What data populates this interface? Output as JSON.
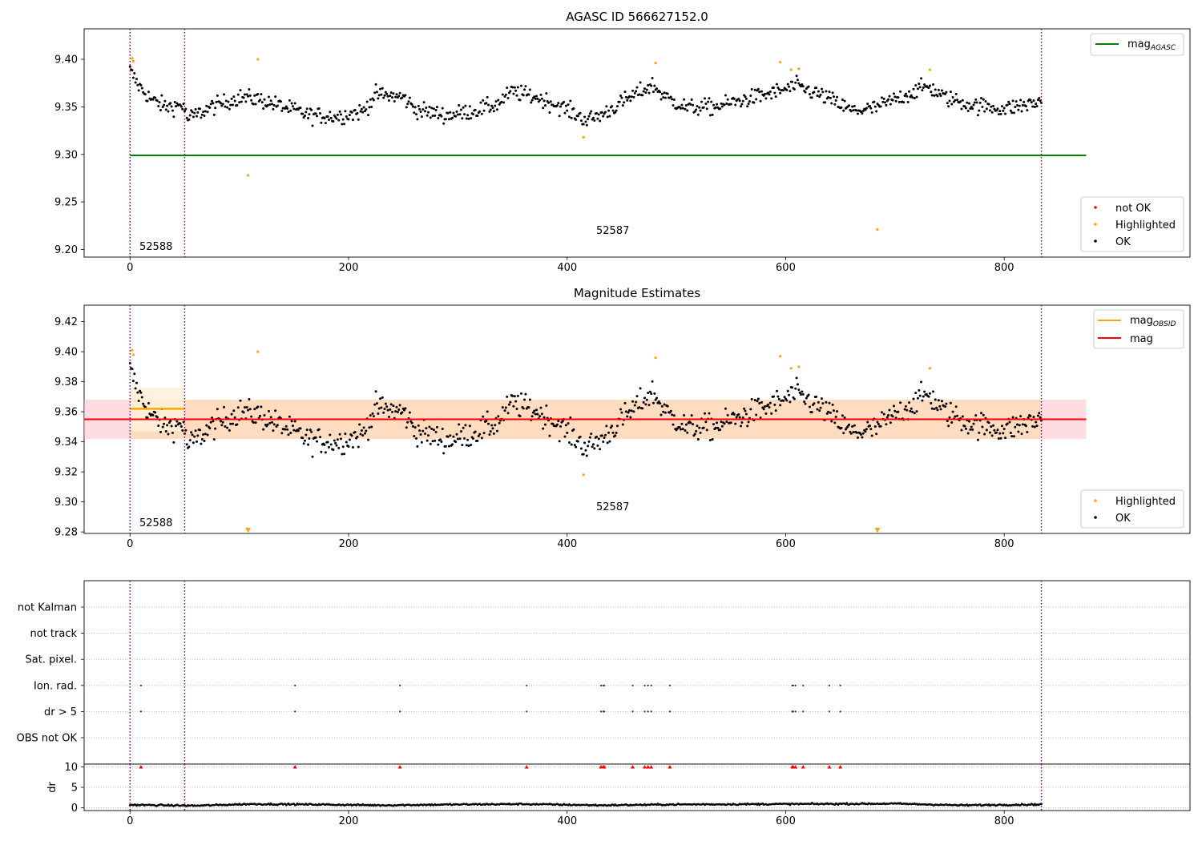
{
  "colors": {
    "ok": "#000000",
    "highlighted": "#ffa500",
    "not_ok": "#ff0000",
    "mag_agasc": "#008000",
    "mag_obsid": "#ffa500",
    "mag": "#ff0000",
    "obsid_boundary": "#800080",
    "mag_band_global": "#ffc0cb",
    "mag_band_obsid": "#ffdab0"
  },
  "chart_data": [
    {
      "type": "scatter",
      "title": "AGASC ID 566627152.0",
      "xlim": [
        -42,
        970
      ],
      "ylim": [
        9.192,
        9.432
      ],
      "xticks": [
        "0",
        "200",
        "400",
        "600",
        "800"
      ],
      "yticks": [
        "9.20",
        "9.25",
        "9.30",
        "9.35",
        "9.40"
      ],
      "legend_top": {
        "placement": "upper right",
        "entries": [
          "mag",
          "AGASC"
        ]
      },
      "legend_bottom": {
        "placement": "lower right",
        "entries": [
          "not OK",
          "Highlighted",
          "OK"
        ]
      },
      "obsid_boundaries": [
        0,
        50,
        834
      ],
      "obsid_labels": [
        {
          "text": "52588",
          "x": 9,
          "y": 9.203
        },
        {
          "text": "52587",
          "x": 425,
          "y": 9.219
        }
      ],
      "mag_agasc": {
        "value": 9.299,
        "x_range": [
          0,
          875
        ]
      },
      "ok_series": {
        "x_range": [
          0,
          834
        ],
        "anchors": [
          [
            0,
            9.388
          ],
          [
            8,
            9.372
          ],
          [
            20,
            9.357
          ],
          [
            33,
            9.35
          ],
          [
            49,
            9.352
          ],
          [
            52,
            9.337
          ],
          [
            75,
            9.35
          ],
          [
            100,
            9.36
          ],
          [
            118,
            9.358
          ],
          [
            140,
            9.35
          ],
          [
            165,
            9.341
          ],
          [
            190,
            9.34
          ],
          [
            213,
            9.345
          ],
          [
            225,
            9.363
          ],
          [
            250,
            9.36
          ],
          [
            262,
            9.347
          ],
          [
            290,
            9.341
          ],
          [
            315,
            9.346
          ],
          [
            335,
            9.352
          ],
          [
            350,
            9.366
          ],
          [
            372,
            9.36
          ],
          [
            395,
            9.35
          ],
          [
            418,
            9.336
          ],
          [
            432,
            9.342
          ],
          [
            455,
            9.358
          ],
          [
            478,
            9.373
          ],
          [
            490,
            9.36
          ],
          [
            510,
            9.349
          ],
          [
            535,
            9.35
          ],
          [
            560,
            9.357
          ],
          [
            590,
            9.365
          ],
          [
            610,
            9.372
          ],
          [
            635,
            9.361
          ],
          [
            660,
            9.346
          ],
          [
            680,
            9.348
          ],
          [
            705,
            9.36
          ],
          [
            730,
            9.372
          ],
          [
            745,
            9.36
          ],
          [
            770,
            9.352
          ],
          [
            800,
            9.348
          ],
          [
            834,
            9.355
          ]
        ]
      },
      "highlighted": [
        {
          "x": 2,
          "y": 9.401
        },
        {
          "x": 3,
          "y": 9.398
        },
        {
          "x": 108,
          "y": 9.278
        },
        {
          "x": 117,
          "y": 9.4
        },
        {
          "x": 415,
          "y": 9.318
        },
        {
          "x": 481,
          "y": 9.396
        },
        {
          "x": 595,
          "y": 9.397
        },
        {
          "x": 605,
          "y": 9.389
        },
        {
          "x": 612,
          "y": 9.39
        },
        {
          "x": 684,
          "y": 9.221
        },
        {
          "x": 732,
          "y": 9.389
        }
      ]
    },
    {
      "type": "scatter",
      "title": "Magnitude Estimates",
      "xlim": [
        -42,
        970
      ],
      "ylim": [
        9.279,
        9.431
      ],
      "xticks": [
        "0",
        "200",
        "400",
        "600",
        "800"
      ],
      "yticks": [
        "9.28",
        "9.30",
        "9.32",
        "9.34",
        "9.36",
        "9.38",
        "9.40",
        "9.42"
      ],
      "legend_top": {
        "placement": "upper right",
        "entries": [
          "mag",
          "OBSID",
          "mag"
        ]
      },
      "legend_bottom": {
        "placement": "lower right",
        "entries": [
          "Highlighted",
          "OK"
        ]
      },
      "obsid_labels": [
        {
          "text": "52588",
          "x": 9,
          "y": 9.285
        },
        {
          "text": "52587",
          "x": 425,
          "y": 9.298
        }
      ],
      "mag_global": {
        "value": 9.355,
        "band": [
          9.342,
          9.368
        ],
        "x_range": [
          -42,
          875
        ]
      },
      "mag_obsid": {
        "value": 9.362,
        "band": [
          9.347,
          9.376
        ],
        "x_range": [
          0,
          50
        ]
      },
      "clipped_markers_x": [
        108,
        684
      ]
    },
    {
      "type": "scatter",
      "yticks": [
        "OBS not OK",
        "dr > 5",
        "Ion. rad.",
        "Sat. pixel.",
        "not track",
        "not Kalman"
      ],
      "flag_rows": {
        "Ion. rad.": [
          10,
          151,
          247,
          363,
          431,
          433,
          434,
          460,
          471,
          474,
          477,
          494,
          606,
          607,
          609,
          616,
          640,
          650
        ],
        "dr > 5": [
          10,
          151,
          247,
          363,
          431,
          433,
          434,
          460,
          471,
          474,
          477,
          494,
          606,
          607,
          609,
          616,
          640,
          650
        ]
      }
    },
    {
      "type": "scatter",
      "ylabel": "dr",
      "ylim": [
        -0.7,
        10.7
      ],
      "xlim": [
        -42,
        970
      ],
      "xticks": [
        "0",
        "200",
        "400",
        "600",
        "800"
      ],
      "yticks": [
        "0",
        "5",
        "10"
      ],
      "clipped_markers_x": [
        10,
        151,
        247,
        363,
        431,
        433,
        434,
        460,
        471,
        474,
        477,
        494,
        606,
        607,
        609,
        616,
        640,
        650
      ],
      "dr_series": {
        "x_range": [
          0,
          834
        ],
        "anchors": [
          [
            0,
            0.7
          ],
          [
            60,
            0.5
          ],
          [
            110,
            0.9
          ],
          [
            170,
            0.8
          ],
          [
            230,
            0.6
          ],
          [
            300,
            0.8
          ],
          [
            360,
            0.9
          ],
          [
            430,
            0.6
          ],
          [
            500,
            0.8
          ],
          [
            600,
            0.9
          ],
          [
            700,
            1.0
          ],
          [
            760,
            0.6
          ],
          [
            834,
            0.8
          ]
        ]
      }
    }
  ]
}
